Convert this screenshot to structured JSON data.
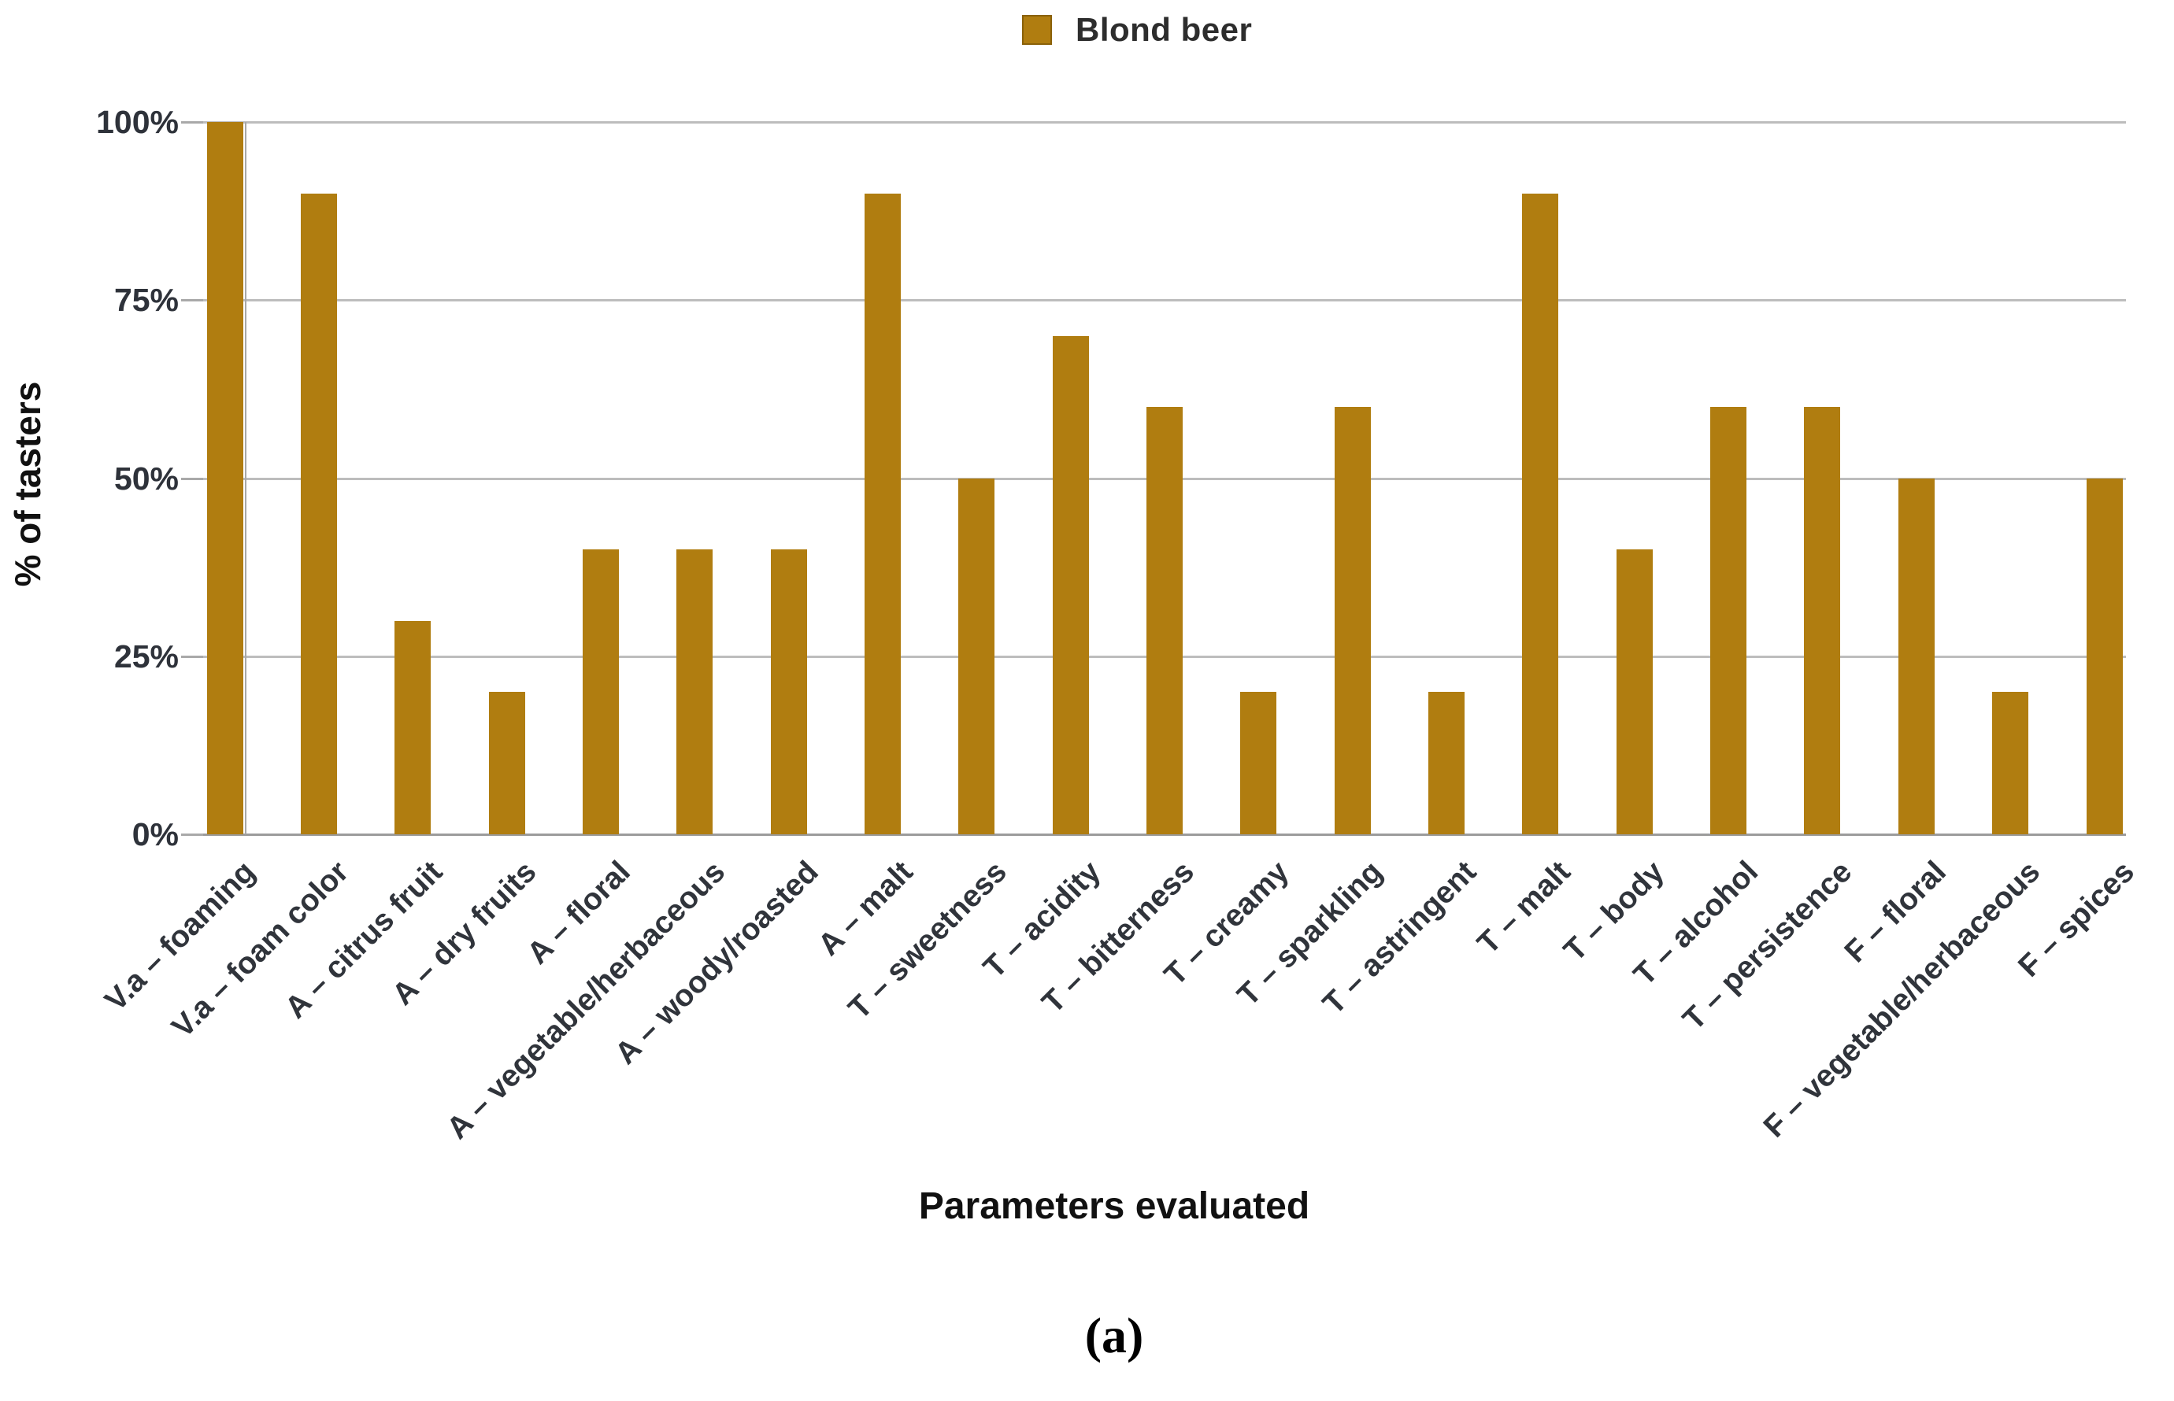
{
  "legend": {
    "label": "Blond beer",
    "swatch_color": "#B07D10"
  },
  "y_axis": {
    "title": "% of tasters",
    "tick_labels": [
      "0%",
      "25%",
      "50%",
      "75%",
      "100%"
    ]
  },
  "x_axis": {
    "title": "Parameters evaluated"
  },
  "caption": "(a)",
  "colors": {
    "bar": "#B07D10",
    "gridline": "#BDBDBD",
    "axis_line": "#9B9B9B"
  },
  "chart_data": {
    "type": "bar",
    "title": "",
    "xlabel": "Parameters evaluated",
    "ylabel": "% of tasters",
    "ylim": [
      0,
      100
    ],
    "yticks": [
      0,
      25,
      50,
      75,
      100
    ],
    "ytick_labels": [
      "0%",
      "25%",
      "50%",
      "75%",
      "100%"
    ],
    "grid": "horizontal",
    "legend_position": "top-center",
    "series": [
      {
        "name": "Blond beer",
        "color": "#B07D10",
        "values": [
          100,
          90,
          30,
          20,
          40,
          40,
          40,
          90,
          50,
          70,
          60,
          20,
          60,
          20,
          90,
          40,
          60,
          60,
          50,
          20,
          50
        ]
      }
    ],
    "categories": [
      "V.a – foaming",
      "V.a – foam color",
      "A – citrus fruit",
      "A – dry fruits",
      "A – floral",
      "A – vegetable/herbaceous",
      "A – woody/roasted",
      "A – malt",
      "T – sweetness",
      "T – acidity",
      "T – bitterness",
      "T – creamy",
      "T – sparkling",
      "T – astringent",
      "T – malt",
      "T – body",
      "T – alcohol",
      "T – persistence",
      "F – floral",
      "F – vegetable/herbaceous",
      "F – spices"
    ]
  }
}
